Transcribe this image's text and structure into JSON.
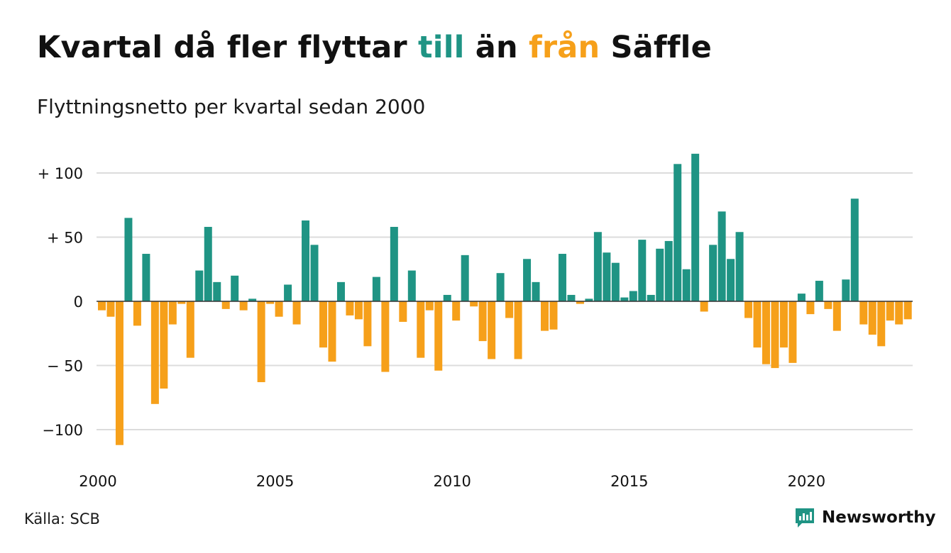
{
  "header": {
    "title_parts": [
      {
        "text": "Kvartal då fler flyttar ",
        "color": "#111111"
      },
      {
        "text": "till",
        "color": "#1f9484"
      },
      {
        "text": " än ",
        "color": "#111111"
      },
      {
        "text": "från",
        "color": "#f6a01a"
      },
      {
        "text": " Säffle",
        "color": "#111111"
      }
    ],
    "subtitle": "Flyttningsnetto per kvartal sedan 2000"
  },
  "footer": {
    "source": "Källa: SCB",
    "brand": "Newsworthy",
    "brand_icon": "newsworthy-logo-icon"
  },
  "colors": {
    "positive": "#1f9484",
    "negative": "#f6a01a",
    "grid": "#dcdcdc",
    "zero_line": "#333333",
    "text": "#111111"
  },
  "chart_data": {
    "type": "bar",
    "x_start": "2000 Q1",
    "x_step": "quarter",
    "values": [
      -7,
      -12,
      -112,
      65,
      -19,
      37,
      -80,
      -68,
      -18,
      -2,
      -44,
      24,
      58,
      15,
      -6,
      20,
      -7,
      2,
      -63,
      -2,
      -12,
      13,
      -18,
      63,
      44,
      -36,
      -47,
      15,
      -11,
      -14,
      -35,
      19,
      -55,
      58,
      -16,
      24,
      -44,
      -7,
      -54,
      5,
      -15,
      36,
      -4,
      -31,
      -45,
      22,
      -13,
      -45,
      33,
      15,
      -23,
      -22,
      37,
      5,
      -2,
      2,
      54,
      38,
      30,
      3,
      8,
      48,
      5,
      41,
      47,
      107,
      25,
      115,
      -8,
      44,
      70,
      33,
      54,
      -13,
      -36,
      -49,
      -52,
      -36,
      -48,
      6,
      -10,
      16,
      -6,
      -23,
      17,
      80,
      -18,
      -26,
      -35,
      -15,
      -18,
      -14
    ],
    "xtick_labels": [
      "2000",
      "2005",
      "2010",
      "2015",
      "2020"
    ],
    "ytick_labels": [
      "−100",
      "− 50",
      "0",
      "+  50",
      "+ 100"
    ],
    "ytick_values": [
      -100,
      -50,
      0,
      50,
      100
    ],
    "ylim": [
      -115,
      120
    ],
    "grid": true,
    "legend": "none"
  }
}
